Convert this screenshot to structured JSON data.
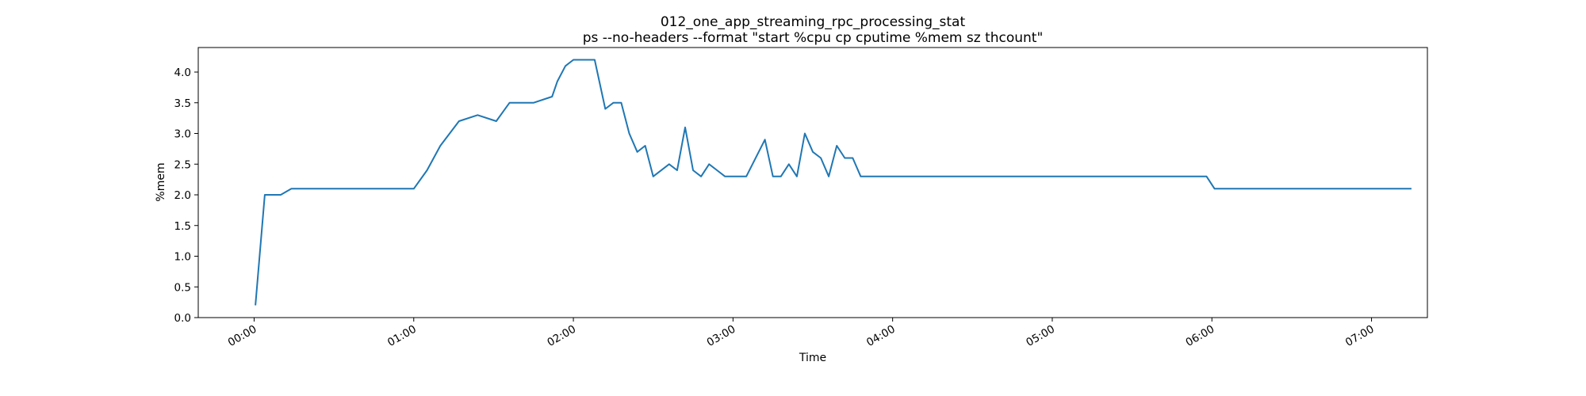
{
  "chart_data": {
    "type": "line",
    "title": "012_one_app_streaming_rpc_processing_stat",
    "subtitle": "ps --no-headers --format \"start %cpu cp cputime %mem sz thcount\"",
    "xlabel": "Time",
    "ylabel": "%mem",
    "x_unit": "minutes",
    "xlim": [
      -21,
      441
    ],
    "ylim": [
      0.0,
      4.4
    ],
    "x_ticks": [
      {
        "label": "00:00",
        "value": 0
      },
      {
        "label": "01:00",
        "value": 60
      },
      {
        "label": "02:00",
        "value": 120
      },
      {
        "label": "03:00",
        "value": 180
      },
      {
        "label": "04:00",
        "value": 240
      },
      {
        "label": "05:00",
        "value": 300
      },
      {
        "label": "06:00",
        "value": 360
      },
      {
        "label": "07:00",
        "value": 420
      }
    ],
    "y_ticks": [
      "0.0",
      "0.5",
      "1.0",
      "1.5",
      "2.0",
      "2.5",
      "3.0",
      "3.5",
      "4.0"
    ],
    "grid": false,
    "color": "#1f77b4",
    "series": [
      {
        "name": "",
        "x": [
          0.5,
          4,
          10,
          14,
          20,
          30,
          40,
          50,
          60,
          65,
          70,
          77,
          84,
          91,
          96,
          99,
          105,
          112,
          114,
          117,
          120,
          123,
          128,
          132,
          135,
          138,
          141,
          144,
          147,
          150,
          156,
          159,
          162,
          165,
          168,
          171,
          174,
          177,
          185,
          192,
          195,
          198,
          201,
          204,
          207,
          210,
          213,
          216,
          219,
          222,
          225,
          228,
          231,
          234,
          241,
          250,
          300,
          350,
          358,
          361,
          380,
          400,
          420,
          435
        ],
        "y": [
          0.2,
          2.0,
          2.0,
          2.1,
          2.1,
          2.1,
          2.1,
          2.1,
          2.1,
          2.4,
          2.8,
          3.2,
          3.3,
          3.2,
          3.5,
          3.5,
          3.5,
          3.6,
          3.85,
          4.1,
          4.2,
          4.2,
          4.2,
          3.4,
          3.5,
          3.5,
          3.0,
          2.7,
          2.8,
          2.3,
          2.5,
          2.4,
          3.1,
          2.4,
          2.3,
          2.5,
          2.4,
          2.3,
          2.3,
          2.9,
          2.3,
          2.3,
          2.5,
          2.3,
          3.0,
          2.7,
          2.6,
          2.3,
          2.8,
          2.6,
          2.6,
          2.3,
          2.3,
          2.3,
          2.3,
          2.3,
          2.3,
          2.3,
          2.3,
          2.1,
          2.1,
          2.1,
          2.1,
          2.1
        ]
      }
    ]
  }
}
